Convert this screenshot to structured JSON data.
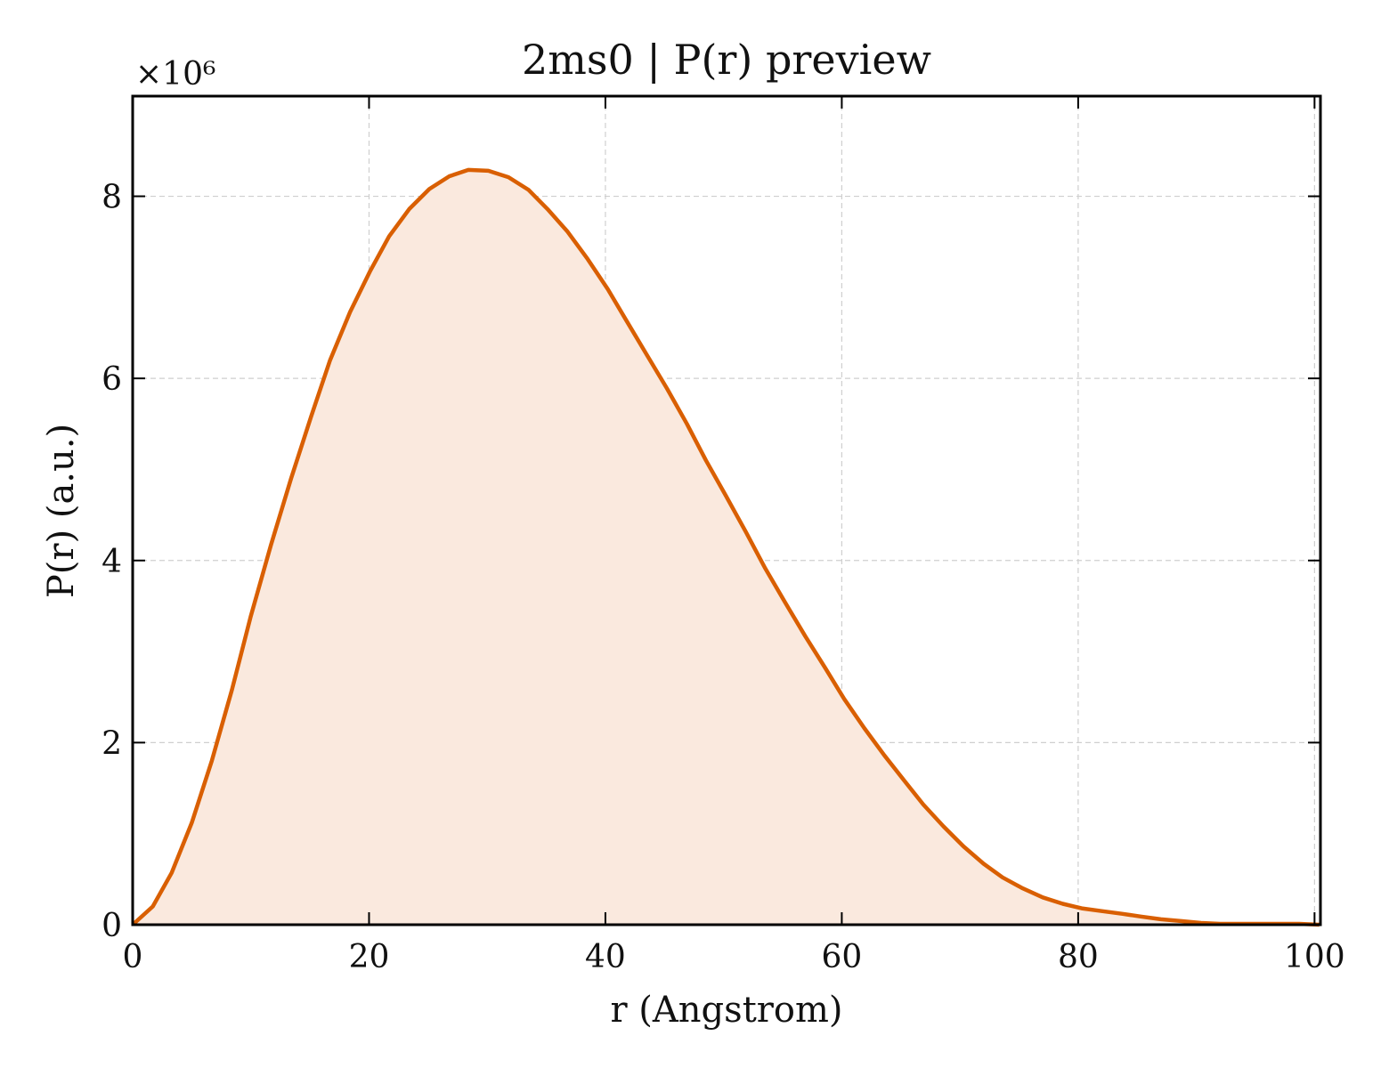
{
  "chart_data": {
    "type": "area",
    "title": "2ms0 | P(r) preview",
    "xlabel": "r (Angstrom)",
    "ylabel": "P(r) (a.u.)",
    "y_multiplier_label": "×10⁶",
    "y_scale": 1000000,
    "xlim": [
      0,
      100.5
    ],
    "ylim": [
      0,
      9.1
    ],
    "x_ticks": [
      0,
      20,
      40,
      60,
      80,
      100
    ],
    "x_tick_labels": [
      "0",
      "20",
      "40",
      "60",
      "80",
      "100"
    ],
    "y_ticks": [
      0,
      2,
      4,
      6,
      8
    ],
    "y_tick_labels": [
      "0",
      "2",
      "4",
      "6",
      "8"
    ],
    "grid": true,
    "line_color": "#d95f02",
    "fill_color": "#fae9de",
    "series": [
      {
        "x": [
          0,
          1.7,
          3.3,
          5.0,
          6.7,
          8.4,
          10.0,
          11.7,
          13.4,
          15.1,
          16.7,
          18.4,
          20.1,
          21.7,
          23.4,
          25.1,
          26.8,
          28.4,
          30.1,
          31.8,
          33.5,
          35.1,
          36.8,
          38.5,
          40.2,
          41.8,
          43.5,
          45.2,
          46.9,
          48.5,
          50.2,
          51.9,
          53.5,
          55.2,
          56.9,
          58.6,
          60.2,
          61.9,
          63.6,
          65.3,
          66.9,
          68.6,
          70.3,
          72.0,
          73.6,
          75.3,
          77.0,
          78.7,
          80.3,
          82.0,
          83.7,
          85.3,
          87.0,
          88.7,
          90.4,
          92.0,
          93.7,
          95.4,
          97.1,
          98.7,
          100.4
        ],
        "y": [
          0.0,
          0.2,
          0.57,
          1.12,
          1.8,
          2.58,
          3.39,
          4.17,
          4.9,
          5.58,
          6.2,
          6.73,
          7.18,
          7.56,
          7.86,
          8.08,
          8.22,
          8.29,
          8.28,
          8.21,
          8.07,
          7.86,
          7.61,
          7.31,
          6.98,
          6.63,
          6.26,
          5.89,
          5.5,
          5.1,
          4.71,
          4.31,
          3.92,
          3.54,
          3.17,
          2.82,
          2.48,
          2.16,
          1.86,
          1.58,
          1.32,
          1.08,
          0.86,
          0.67,
          0.52,
          0.4,
          0.3,
          0.23,
          0.18,
          0.15,
          0.12,
          0.09,
          0.06,
          0.04,
          0.02,
          0.01,
          0.01,
          0.01,
          0.01,
          0.01,
          0.0
        ]
      }
    ]
  }
}
